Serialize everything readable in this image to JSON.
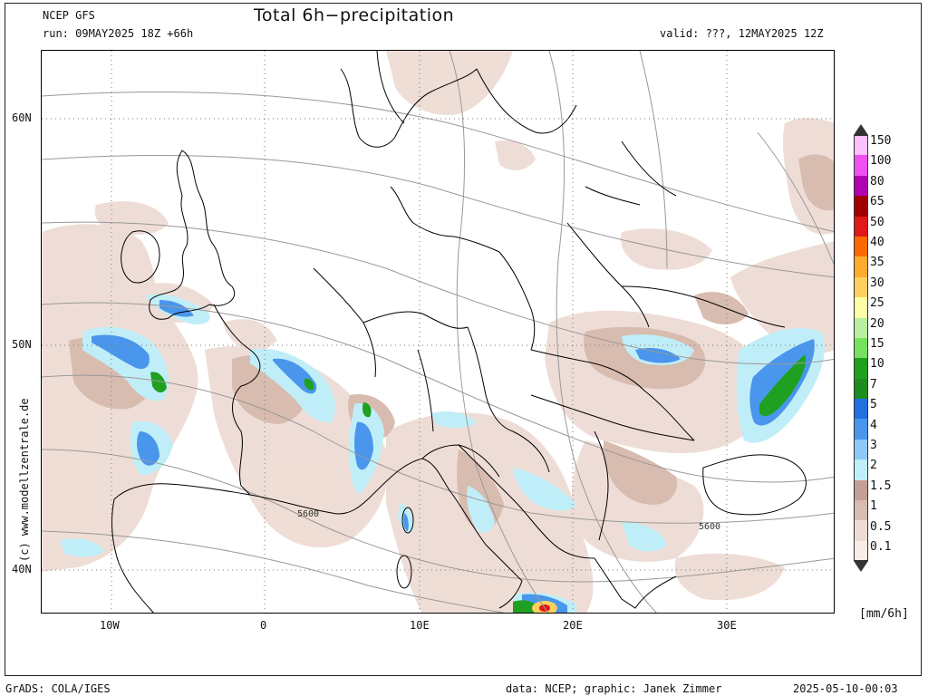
{
  "header": {
    "model": "NCEP GFS",
    "run": "run: 09MAY2025 18Z +66h",
    "title": "Total 6h−precipitation",
    "valid": "valid: ???, 12MAY2025 12Z"
  },
  "axes": {
    "lat_labels": [
      "60N",
      "50N",
      "40N"
    ],
    "lon_labels": [
      "10W",
      "0",
      "10E",
      "20E",
      "30E"
    ]
  },
  "credit": "(c) www.modellzentrale.de",
  "contour_labels": [
    "5600",
    "5600"
  ],
  "legend": {
    "unit": "[mm/6h]",
    "levels": [
      {
        "label": "150",
        "color": "#ffc0ff"
      },
      {
        "label": "100",
        "color": "#f050f0"
      },
      {
        "label": "80",
        "color": "#b000b0"
      },
      {
        "label": "65",
        "color": "#a00000"
      },
      {
        "label": "50",
        "color": "#e01818"
      },
      {
        "label": "40",
        "color": "#ff6a00"
      },
      {
        "label": "35",
        "color": "#ffaa30"
      },
      {
        "label": "30",
        "color": "#ffd060"
      },
      {
        "label": "25",
        "color": "#ffffa8"
      },
      {
        "label": "20",
        "color": "#b8f0a0"
      },
      {
        "label": "15",
        "color": "#78e060"
      },
      {
        "label": "10",
        "color": "#20a020"
      },
      {
        "label": "7",
        "color": "#1e8c1e"
      },
      {
        "label": "5",
        "color": "#2070e0"
      },
      {
        "label": "4",
        "color": "#4a96ec"
      },
      {
        "label": "3",
        "color": "#8ec8f4"
      },
      {
        "label": "2",
        "color": "#c0eef8"
      },
      {
        "label": "1.5",
        "color": "#c4a094"
      },
      {
        "label": "1",
        "color": "#d8bcb0"
      },
      {
        "label": "0.5",
        "color": "#eedcd4"
      },
      {
        "label": "0.1",
        "color": "#f8ece6"
      }
    ]
  },
  "footer": {
    "left": "GrADS: COLA/IGES",
    "center": "data: NCEP; graphic: Janek Zimmer",
    "right": "2025-05-10-00:03"
  }
}
